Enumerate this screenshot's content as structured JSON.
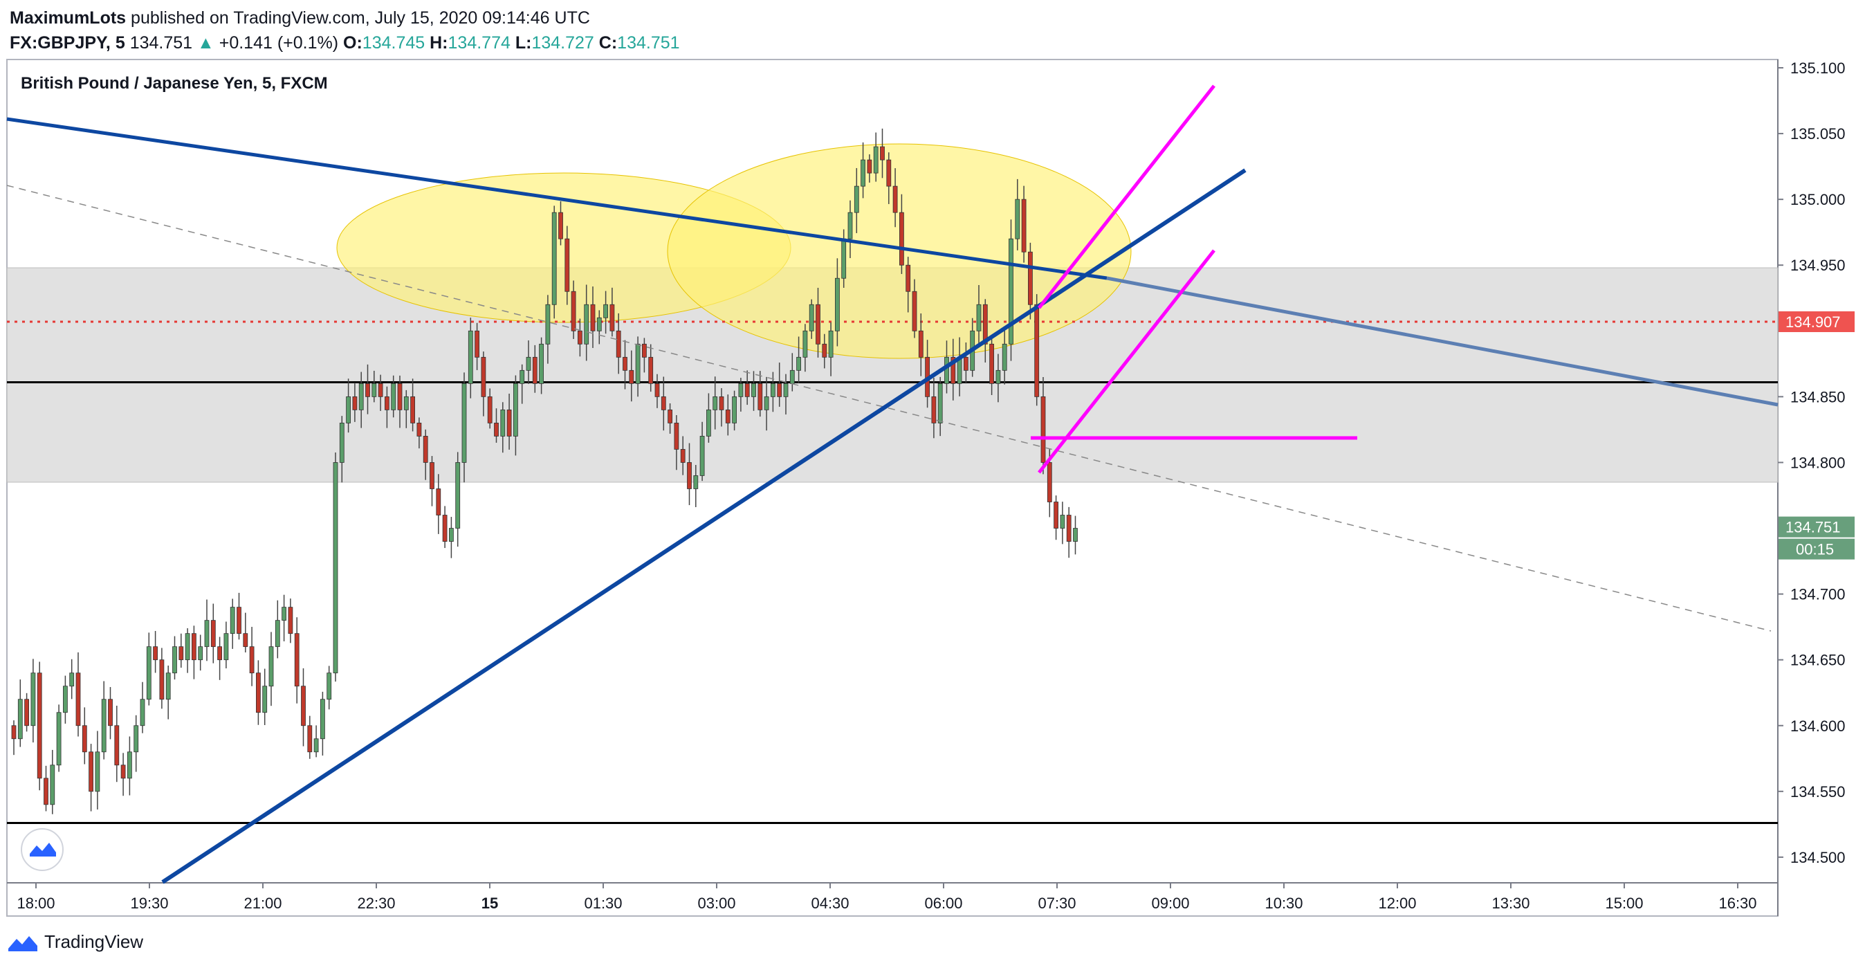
{
  "header": {
    "author": "MaximumLots",
    "published": "published on TradingView.com, July 15, 2020 09:14:46 UTC",
    "symbol": "FX:GBPJPY, 5",
    "last": "134.751",
    "change": "+0.141 (+0.1%)",
    "o_label": "O:",
    "o": "134.745",
    "h_label": "H:",
    "h": "134.774",
    "l_label": "L:",
    "l": "134.727",
    "c_label": "C:",
    "c": "134.751"
  },
  "footer": {
    "brand": "TradingView"
  },
  "colors": {
    "up": "#26a69a",
    "down": "#ef5350",
    "candle_up": "#5b9e6a",
    "candle_down": "#c0392b",
    "trend_blue": "#0d47a1",
    "magenta": "#ff00ff",
    "zone": "#d9d9d9",
    "ellipse": "#fff176",
    "price_badge": "#ef5350",
    "last_badge": "#689f7c"
  },
  "chart_data": {
    "type": "candlestick",
    "title": "British Pound / Japanese Yen, 5, FXCM",
    "ylim": [
      134.48,
      135.11
    ],
    "y_ticks": [
      "135.100",
      "135.050",
      "135.000",
      "134.950",
      "134.907",
      "134.850",
      "134.800",
      "134.751",
      "134.700",
      "134.650",
      "134.600",
      "134.550",
      "134.500"
    ],
    "x_ticks": [
      "18:00",
      "19:30",
      "21:00",
      "22:30",
      "15",
      "01:30",
      "03:00",
      "04:30",
      "06:00",
      "07:30",
      "09:00",
      "10:30",
      "12:00",
      "13:30",
      "15:00",
      "16:30"
    ],
    "current_price": "134.907",
    "last_price": "134.751",
    "countdown": "00:15",
    "key_levels": [
      134.861,
      134.526
    ],
    "supply_zone": [
      134.785,
      134.948
    ],
    "closes": [
      134.59,
      134.62,
      134.6,
      134.64,
      134.56,
      134.54,
      134.57,
      134.61,
      134.63,
      134.64,
      134.6,
      134.58,
      134.55,
      134.58,
      134.62,
      134.6,
      134.57,
      134.56,
      134.58,
      134.6,
      134.62,
      134.66,
      134.65,
      134.62,
      134.64,
      134.66,
      134.65,
      134.67,
      134.65,
      134.66,
      134.68,
      134.66,
      134.65,
      134.67,
      134.69,
      134.67,
      134.66,
      134.64,
      134.61,
      134.63,
      134.66,
      134.68,
      134.69,
      134.67,
      134.63,
      134.6,
      134.58,
      134.59,
      134.62,
      134.64,
      134.8,
      134.83,
      134.85,
      134.84,
      134.86,
      134.85,
      134.86,
      134.85,
      134.84,
      134.86,
      134.84,
      134.85,
      134.83,
      134.82,
      134.8,
      134.78,
      134.76,
      134.74,
      134.75,
      134.8,
      134.86,
      134.9,
      134.88,
      134.85,
      134.83,
      134.82,
      134.84,
      134.82,
      134.86,
      134.87,
      134.88,
      134.86,
      134.89,
      134.92,
      134.99,
      134.97,
      134.93,
      134.9,
      134.89,
      134.92,
      134.9,
      134.91,
      134.92,
      134.9,
      134.88,
      134.87,
      134.86,
      134.89,
      134.88,
      134.86,
      134.85,
      134.84,
      134.83,
      134.81,
      134.8,
      134.78,
      134.79,
      134.82,
      134.84,
      134.85,
      134.84,
      134.83,
      134.85,
      134.86,
      134.85,
      134.86,
      134.84,
      134.85,
      134.86,
      134.85,
      134.86,
      134.87,
      134.88,
      134.9,
      134.92,
      134.89,
      134.88,
      134.9,
      134.94,
      134.97,
      134.99,
      135.01,
      135.03,
      135.02,
      135.04,
      135.03,
      135.01,
      134.99,
      134.95,
      134.93,
      134.9,
      134.88,
      134.85,
      134.83,
      134.86,
      134.88,
      134.86,
      134.88,
      134.87,
      134.9,
      134.92,
      134.89,
      134.86,
      134.87,
      134.89,
      134.97,
      135.0,
      134.96,
      134.92,
      134.85,
      134.8,
      134.77,
      134.75,
      134.76,
      134.74,
      134.75
    ]
  }
}
